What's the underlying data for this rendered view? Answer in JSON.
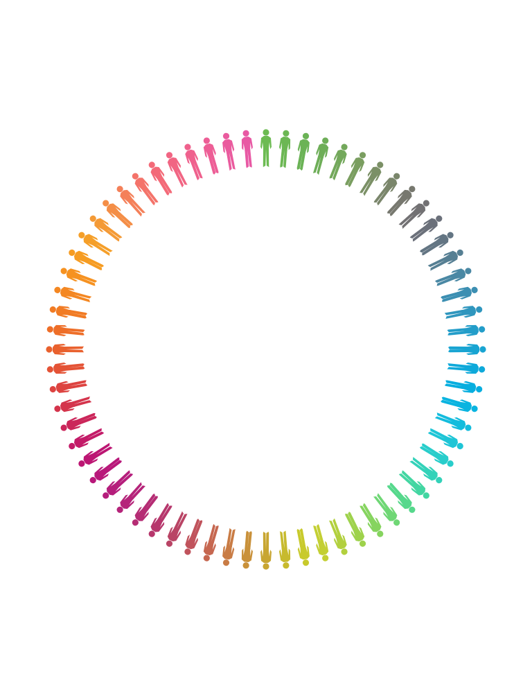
{
  "figure": {
    "icon": "person-silhouette-icon",
    "count": 68,
    "colors": [
      "#6cbb52",
      "#6cb754",
      "#6bb356",
      "#6eae58",
      "#73a85b",
      "#7a9e60",
      "#7b9066",
      "#7a866b",
      "#77786f",
      "#727173",
      "#6b707a",
      "#637583",
      "#567f93",
      "#4a88a4",
      "#3c8fb2",
      "#2f96be",
      "#239dc9",
      "#18a4d2",
      "#0ea9da",
      "#07aedf",
      "#0ab4e0",
      "#13bcdd",
      "#1ec5d6",
      "#28cdcb",
      "#33d2b9",
      "#43d6a2",
      "#56d88c",
      "#6fd775",
      "#86d45f",
      "#9ed24c",
      "#b2d03e",
      "#c3cf33",
      "#c8ca2c",
      "#c7ba2e",
      "#c8a632",
      "#c9913a",
      "#c97c45",
      "#c66750",
      "#c0535c",
      "#b94465",
      "#b6376c",
      "#b52c74",
      "#b5247a",
      "#b51e7c",
      "#b8187a",
      "#bc1673",
      "#c31b68",
      "#cb265a",
      "#d4344c",
      "#dd4340",
      "#e45336",
      "#e9612e",
      "#ee6e28",
      "#f17b24",
      "#f48722",
      "#f69221",
      "#f69c22",
      "#f59f29",
      "#f49a36",
      "#f48e47",
      "#f48059",
      "#f4736a",
      "#f36a78",
      "#f16583",
      "#ef618d",
      "#ed5e96",
      "#ea5b9e",
      "#e859a4"
    ]
  }
}
